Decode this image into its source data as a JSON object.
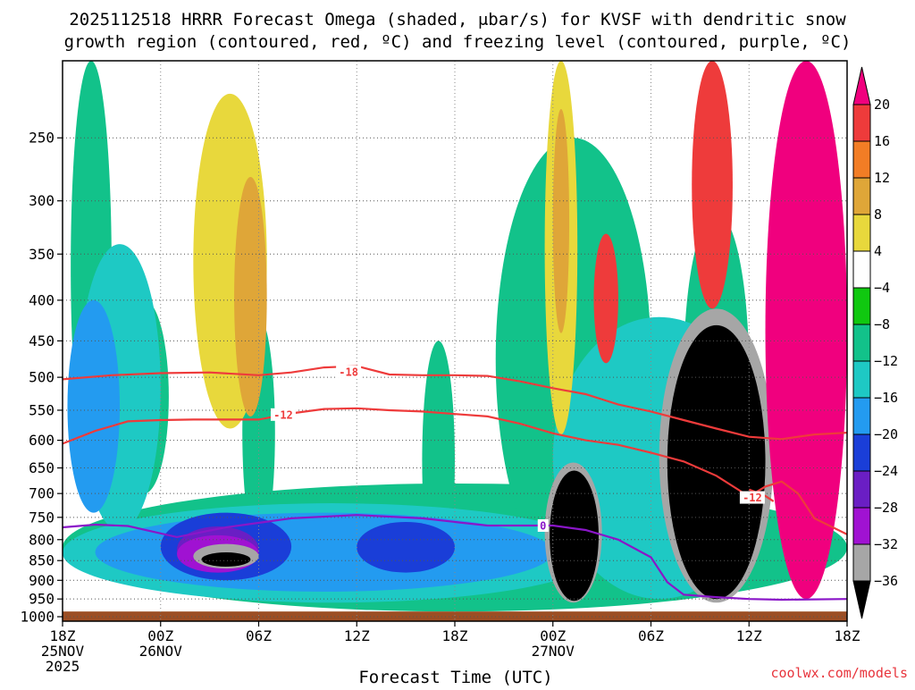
{
  "chart_data": {
    "type": "heatmap",
    "title_line1": "2025112518 HRRR Forecast Omega (shaded, μbar/s) for KVSF with dendritic snow",
    "title_line2": "growth region (contoured, red, ºC) and freezing level (contoured, purple, ºC)",
    "xlabel": "Forecast Time (UTC)",
    "credit": "coolwx.com/models",
    "x_ticks": [
      {
        "h": 0,
        "l1": "18Z",
        "l2": "25NOV",
        "l3": "2025"
      },
      {
        "h": 6,
        "l1": "00Z",
        "l2": "26NOV",
        "l3": ""
      },
      {
        "h": 12,
        "l1": "06Z",
        "l2": "",
        "l3": ""
      },
      {
        "h": 18,
        "l1": "12Z",
        "l2": "",
        "l3": ""
      },
      {
        "h": 24,
        "l1": "18Z",
        "l2": "",
        "l3": ""
      },
      {
        "h": 30,
        "l1": "00Z",
        "l2": "27NOV",
        "l3": ""
      },
      {
        "h": 36,
        "l1": "06Z",
        "l2": "",
        "l3": ""
      },
      {
        "h": 42,
        "l1": "12Z",
        "l2": "",
        "l3": ""
      },
      {
        "h": 48,
        "l1": "18Z",
        "l2": "",
        "l3": ""
      }
    ],
    "x_range_hours": [
      0,
      48
    ],
    "y_ticks": [
      250,
      300,
      350,
      400,
      450,
      500,
      550,
      600,
      650,
      700,
      750,
      800,
      850,
      900,
      950,
      1000
    ],
    "y_range_mb": [
      200,
      1013
    ],
    "colorbar": {
      "tick_labels": [
        "20",
        "16",
        "12",
        "8",
        "4",
        "−4",
        "−8",
        "−12",
        "−16",
        "−20",
        "−24",
        "−28",
        "−32",
        "−36"
      ],
      "bins": [
        {
          "range": "> 20",
          "color": "#f0007e"
        },
        {
          "range": "16 to 20",
          "color": "#ee3b3b"
        },
        {
          "range": "12 to 16",
          "color": "#f27d25"
        },
        {
          "range": "8 to 12",
          "color": "#dfa638"
        },
        {
          "range": "4 to 8",
          "color": "#e8d83c"
        },
        {
          "range": "-4 to 4",
          "color": "#ffffff"
        },
        {
          "range": "-8 to -4",
          "color": "#10c810"
        },
        {
          "range": "-12 to -8",
          "color": "#12c28a"
        },
        {
          "range": "-16 to -12",
          "color": "#1ec9c4"
        },
        {
          "range": "-20 to -16",
          "color": "#239bf0"
        },
        {
          "range": "-24 to -20",
          "color": "#1a3ed8"
        },
        {
          "range": "-28 to -24",
          "color": "#6a1ec4"
        },
        {
          "range": "-32 to -28",
          "color": "#a012d2"
        },
        {
          "range": "-36 to -32",
          "color": "#a6a6a6"
        },
        {
          "range": "< -36",
          "color": "#000000"
        }
      ]
    },
    "surface_pressure_mb": 985,
    "surface_color": "#9c4e24",
    "grid": "dotted",
    "dgz_contours": [
      {
        "label": "-18",
        "label_hour": 17.5,
        "label_p": 492,
        "color": "#ee3b3b",
        "points": [
          [
            0,
            503
          ],
          [
            3,
            497
          ],
          [
            6,
            494
          ],
          [
            9,
            493
          ],
          [
            12,
            497
          ],
          [
            14,
            493
          ],
          [
            16,
            486
          ],
          [
            18,
            484
          ],
          [
            20,
            496
          ],
          [
            22,
            497
          ],
          [
            24,
            497
          ],
          [
            26,
            498
          ],
          [
            28,
            506
          ],
          [
            30,
            516
          ],
          [
            32,
            525
          ],
          [
            34,
            541
          ],
          [
            36,
            552
          ],
          [
            38,
            566
          ],
          [
            40,
            580
          ],
          [
            42,
            594
          ],
          [
            44,
            598
          ],
          [
            46,
            590
          ],
          [
            48,
            587
          ]
        ]
      },
      {
        "label": "-12",
        "label_hour": 13.5,
        "label_p": 557,
        "color": "#ee3b3b",
        "points": [
          [
            0,
            606
          ],
          [
            2,
            584
          ],
          [
            4,
            568
          ],
          [
            6,
            566
          ],
          [
            8,
            565
          ],
          [
            10,
            565
          ],
          [
            12,
            565
          ],
          [
            14,
            555
          ],
          [
            16,
            548
          ],
          [
            18,
            547
          ],
          [
            20,
            550
          ],
          [
            22,
            552
          ],
          [
            24,
            556
          ],
          [
            26,
            560
          ],
          [
            28,
            572
          ],
          [
            30,
            588
          ],
          [
            32,
            600
          ],
          [
            34,
            608
          ],
          [
            36,
            622
          ],
          [
            38,
            638
          ],
          [
            40,
            665
          ],
          [
            42,
            706
          ],
          [
            43,
            686
          ],
          [
            44,
            676
          ],
          [
            45,
            700
          ],
          [
            46,
            752
          ],
          [
            48,
            788
          ]
        ]
      },
      {
        "label": "-12",
        "label_hour": 42.2,
        "label_p": 708,
        "color": "#ee3b3b",
        "points": [
          [
            42,
            692
          ],
          [
            43,
            705
          ],
          [
            43.5,
            716
          ]
        ]
      }
    ],
    "freezing_level": {
      "label": "0",
      "label_hour": 29.4,
      "label_p": 768,
      "color": "#8a16c8",
      "points": [
        [
          0,
          772
        ],
        [
          2,
          766
        ],
        [
          4,
          769
        ],
        [
          7,
          794
        ],
        [
          10,
          772
        ],
        [
          14,
          752
        ],
        [
          18,
          745
        ],
        [
          22,
          752
        ],
        [
          26,
          768
        ],
        [
          28,
          768
        ],
        [
          30,
          768
        ],
        [
          32,
          778
        ],
        [
          34,
          800
        ],
        [
          36,
          842
        ],
        [
          37,
          905
        ],
        [
          38,
          938
        ],
        [
          40,
          945
        ],
        [
          42,
          950
        ],
        [
          44,
          952
        ],
        [
          48,
          950
        ]
      ]
    },
    "omega_features": [
      {
        "value": -6,
        "h": [
          0,
          48
        ],
        "p": [
          680,
          985
        ]
      },
      {
        "value": -6,
        "h": [
          0.5,
          3
        ],
        "p": [
          200,
          660
        ]
      },
      {
        "value": -6,
        "h": [
          3.5,
          6.5
        ],
        "p": [
          400,
          700
        ]
      },
      {
        "value": -6,
        "h": [
          11,
          13
        ],
        "p": [
          420,
          820
        ]
      },
      {
        "value": -6,
        "h": [
          22,
          24
        ],
        "p": [
          450,
          900
        ]
      },
      {
        "value": -6,
        "h": [
          26.5,
          36
        ],
        "p": [
          250,
          900
        ]
      },
      {
        "value": -6,
        "h": [
          38,
          42
        ],
        "p": [
          310,
          780
        ]
      },
      {
        "value": -10,
        "h": [
          1,
          6
        ],
        "p": [
          340,
          780
        ]
      },
      {
        "value": -10,
        "h": [
          0,
          33
        ],
        "p": [
          720,
          960
        ]
      },
      {
        "value": -10,
        "h": [
          30,
          43
        ],
        "p": [
          420,
          950
        ]
      },
      {
        "value": -14,
        "h": [
          0.3,
          3.5
        ],
        "p": [
          400,
          740
        ]
      },
      {
        "value": -14,
        "h": [
          2,
          30
        ],
        "p": [
          740,
          930
        ]
      },
      {
        "value": -18,
        "h": [
          6,
          14
        ],
        "p": [
          740,
          900
        ]
      },
      {
        "value": -18,
        "h": [
          18,
          24
        ],
        "p": [
          760,
          880
        ]
      },
      {
        "value": -22,
        "h": [
          7,
          12
        ],
        "p": [
          770,
          880
        ]
      },
      {
        "value": -26,
        "h": [
          7,
          12
        ],
        "p": [
          790,
          880
        ]
      },
      {
        "value": -34,
        "h": [
          8,
          12
        ],
        "p": [
          810,
          870
        ]
      },
      {
        "value": -38,
        "h": [
          8.5,
          11.5
        ],
        "p": [
          830,
          865
        ]
      },
      {
        "value": -30,
        "h": [
          29.5,
          33
        ],
        "p": [
          640,
          960
        ]
      },
      {
        "value": -38,
        "h": [
          29.8,
          32.8
        ],
        "p": [
          655,
          955
        ]
      },
      {
        "value": -30,
        "h": [
          36.5,
          43.5
        ],
        "p": [
          410,
          960
        ]
      },
      {
        "value": -38,
        "h": [
          37,
          43
        ],
        "p": [
          430,
          950
        ]
      },
      {
        "value": 6,
        "h": [
          8,
          12.5
        ],
        "p": [
          220,
          580
        ]
      },
      {
        "value": 10,
        "h": [
          10.5,
          12.5
        ],
        "p": [
          280,
          560
        ]
      },
      {
        "value": 6,
        "h": [
          29.5,
          31.5
        ],
        "p": [
          200,
          590
        ]
      },
      {
        "value": 10,
        "h": [
          30,
          31
        ],
        "p": [
          230,
          440
        ]
      },
      {
        "value": 18,
        "h": [
          32.5,
          34
        ],
        "p": [
          330,
          480
        ]
      },
      {
        "value": 18,
        "h": [
          38.5,
          41
        ],
        "p": [
          200,
          410
        ]
      },
      {
        "value": 22,
        "h": [
          43,
          48
        ],
        "p": [
          200,
          950
        ]
      }
    ]
  }
}
